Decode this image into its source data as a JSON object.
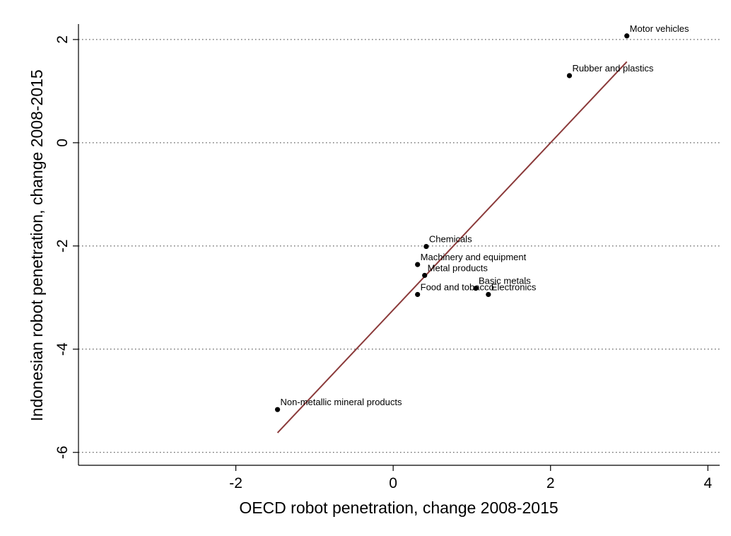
{
  "chart_data": {
    "type": "scatter",
    "title": "",
    "xlabel": "OECD robot penetration, change 2008-2015",
    "ylabel": "Indonesian robot penetration, change 2008-2015",
    "xlim": [
      -4.0,
      4.15
    ],
    "ylim": [
      -6.25,
      2.3
    ],
    "xticks": [
      -2,
      0,
      2,
      4
    ],
    "yticks": [
      -6,
      -4,
      -2,
      0,
      2
    ],
    "grid": "horizontal-dotted",
    "points": [
      {
        "label": "Motor vehicles",
        "x": 2.97,
        "y": 2.07
      },
      {
        "label": "Rubber and plastics",
        "x": 2.24,
        "y": 1.3
      },
      {
        "label": "Chemicals",
        "x": 0.42,
        "y": -2.01
      },
      {
        "label": "Machinery and equipment",
        "x": 0.31,
        "y": -2.36
      },
      {
        "label": "Metal products",
        "x": 0.4,
        "y": -2.57
      },
      {
        "label": "Basic metals",
        "x": 1.05,
        "y": -2.82
      },
      {
        "label": "Food and tobacco",
        "x": 0.31,
        "y": -2.94
      },
      {
        "label": "Electronics",
        "x": 1.21,
        "y": -2.94
      },
      {
        "label": "Non-metallic mineral products",
        "x": -1.47,
        "y": -5.17
      }
    ],
    "fit_line": {
      "x": [
        -1.47,
        2.97
      ],
      "y": [
        -5.62,
        1.57
      ],
      "color": "#8b3a3a"
    },
    "point_color": "#000000"
  }
}
